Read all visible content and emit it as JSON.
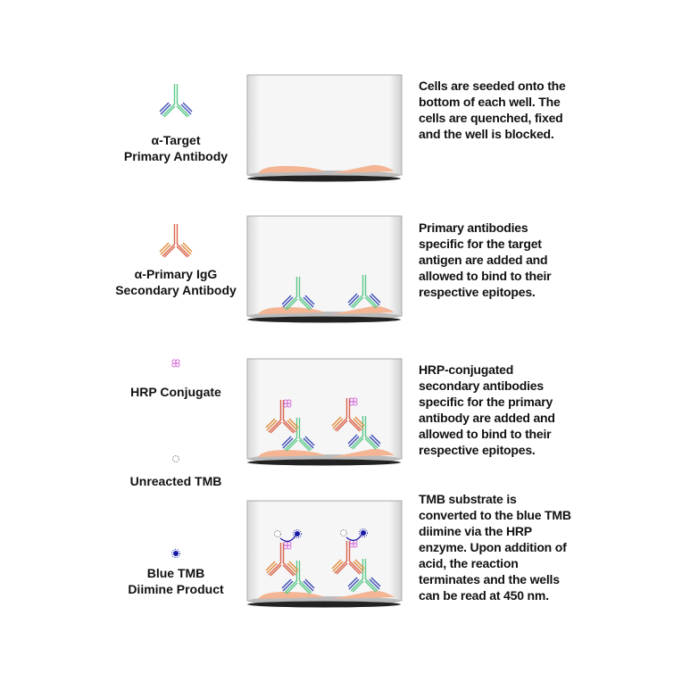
{
  "legend": {
    "primary_antibody": "α-Target\nPrimary Antibody",
    "secondary_antibody": "α-Primary IgG\nSecondary Antibody",
    "hrp": "HRP Conjugate",
    "unreacted_tmb": "Unreacted TMB",
    "blue_tmb": "Blue TMB\nDiimine Product"
  },
  "steps": [
    {
      "text": "Cells are seeded onto the bottom of each well. The cells are quenched, fixed and the well is blocked."
    },
    {
      "text": "Primary antibodies specific for the target antigen are added and allowed to bind to their respective epitopes."
    },
    {
      "text": "HRP-conjugated secondary antibodies specific for the primary antibody are added and allowed to bind to their respective epitopes."
    },
    {
      "text": "TMB substrate is converted to the blue TMB diimine via the HRP enzyme. Upon addition of acid, the reaction terminates and the wells can be read at 450 nm."
    }
  ],
  "colors": {
    "primary_heavy": "#5cc98a",
    "primary_light": "#3b4bb5",
    "secondary_heavy": "#d9634a",
    "secondary_light": "#e0893a",
    "hrp": "#d36bd6",
    "tmb_blue": "#1a1aa8",
    "cell": "#f3b594",
    "well_base": "#222222"
  }
}
